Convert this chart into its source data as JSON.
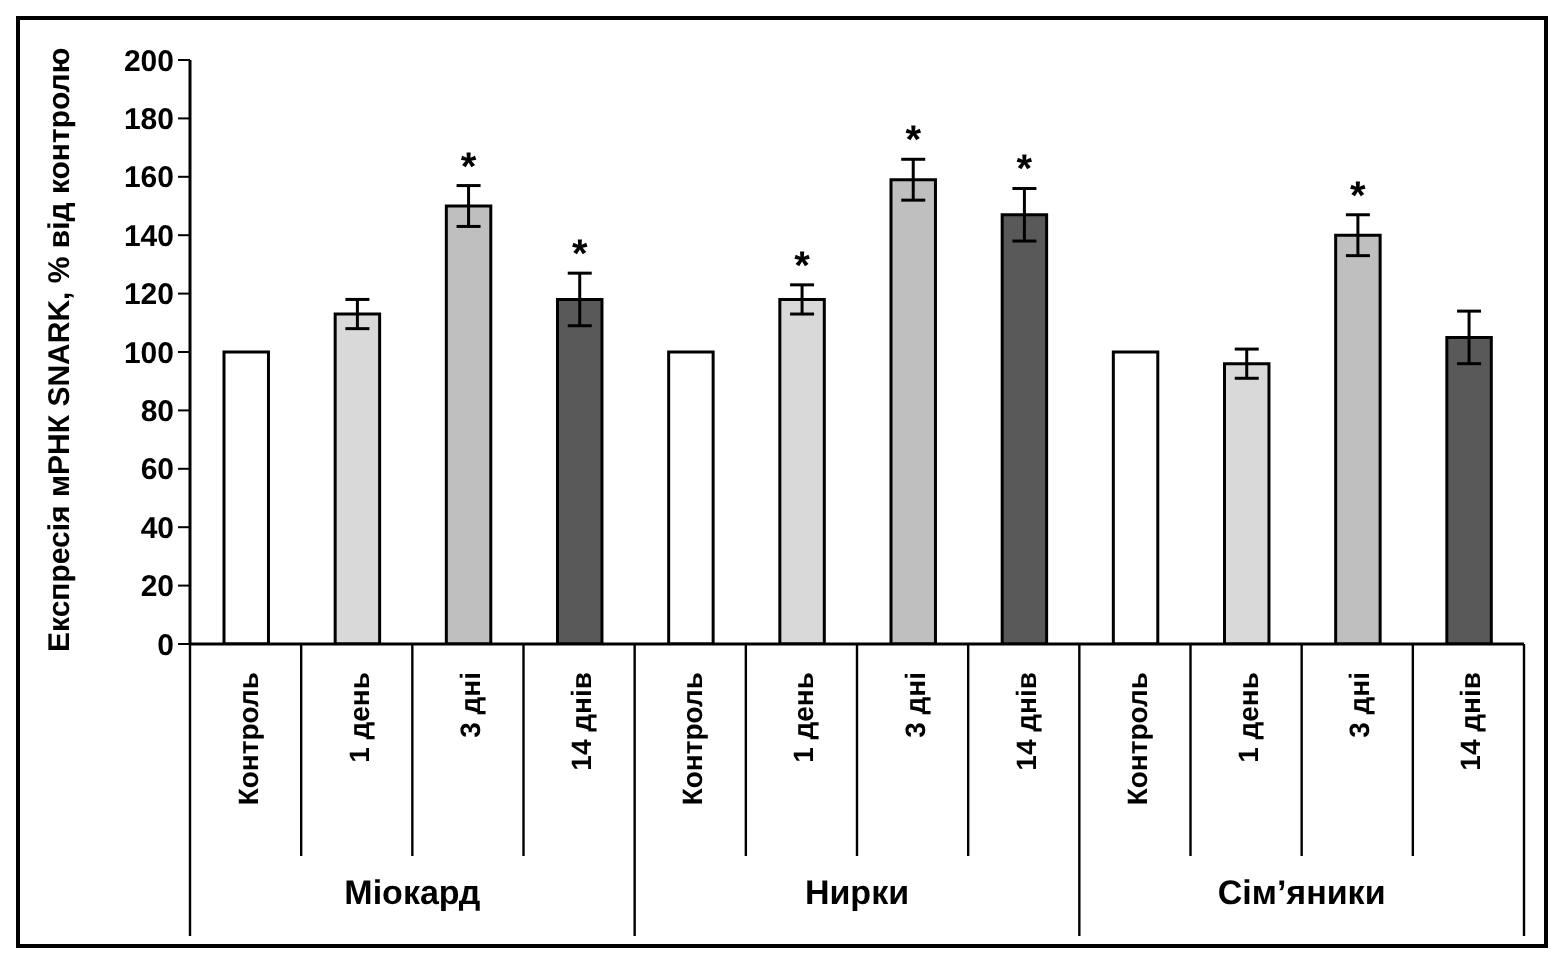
{
  "chart_data": {
    "type": "bar",
    "ylabel": "Експресія мРНК SNARK, % від контролю",
    "categories": [
      "Контроль",
      "1 день",
      "3 дні",
      "14 днів",
      "Контроль",
      "1 день",
      "3 дні",
      "14 днів",
      "Контроль",
      "1 день",
      "3 дні",
      "14 днів"
    ],
    "values": [
      100,
      113,
      150,
      118,
      100,
      118,
      159,
      147,
      100,
      96,
      140,
      105
    ],
    "errors": [
      null,
      5,
      7,
      9,
      null,
      5,
      7,
      9,
      null,
      5,
      7,
      9
    ],
    "value_labels": [
      null,
      null,
      "*",
      "*",
      null,
      "*",
      "*",
      "*",
      null,
      null,
      "*",
      null
    ],
    "colors": [
      "#ffffff",
      "#d9d9d9",
      "#bfbfbf",
      "#595959",
      "#ffffff",
      "#d9d9d9",
      "#bfbfbf",
      "#595959",
      "#ffffff",
      "#d9d9d9",
      "#bfbfbf",
      "#595959"
    ],
    "annotations": [
      "Міокард",
      "Нирки",
      "Сім’яники"
    ],
    "ylim": [
      0,
      200
    ],
    "yticks": [
      0,
      20,
      40,
      60,
      80,
      100,
      120,
      140,
      160,
      180,
      200
    ]
  }
}
